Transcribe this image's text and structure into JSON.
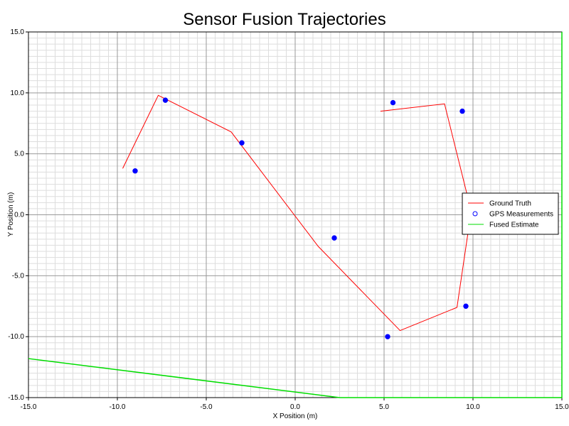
{
  "chart_data": {
    "type": "line",
    "title": "Sensor Fusion Trajectories",
    "xlabel": "X Position (m)",
    "ylabel": "Y Position (m)",
    "xlim": [
      -15,
      15
    ],
    "ylim": [
      -15,
      15
    ],
    "x_ticks": [
      "-15.0",
      "-10.0",
      "-5.0",
      "0.0",
      "5.0",
      "10.0",
      "15.0"
    ],
    "y_ticks": [
      "15.0",
      "10.0",
      "5.0",
      "0.0",
      "-5.0",
      "-10.0",
      "-15.0"
    ],
    "x_tick_values": [
      -15,
      -10,
      -5,
      0,
      5,
      10,
      15
    ],
    "y_tick_values": [
      15,
      10,
      5,
      0,
      -5,
      -10,
      -15
    ],
    "grid": true,
    "legend_position": "right",
    "series": [
      {
        "name": "Ground Truth",
        "type": "line",
        "color": "#ff0000",
        "points": [
          [
            -9.7,
            3.8
          ],
          [
            -7.7,
            9.8
          ],
          [
            -3.6,
            6.8
          ],
          [
            1.3,
            -2.6
          ],
          [
            5.9,
            -9.5
          ],
          [
            9.1,
            -7.6
          ],
          [
            9.9,
            0.3
          ],
          [
            8.4,
            9.1
          ],
          [
            4.8,
            8.5
          ]
        ]
      },
      {
        "name": "GPS Measurements",
        "type": "scatter",
        "color": "#0000ff",
        "points": [
          [
            -9.0,
            3.6
          ],
          [
            -7.3,
            9.4
          ],
          [
            -3.0,
            5.9
          ],
          [
            2.2,
            -1.9
          ],
          [
            5.2,
            -10.0
          ],
          [
            5.5,
            9.2
          ],
          [
            9.4,
            8.5
          ],
          [
            9.6,
            -7.5
          ],
          [
            10.1,
            0.6
          ]
        ]
      },
      {
        "name": "Fused Estimate",
        "type": "line",
        "color": "#00dd00",
        "points": [
          [
            -15.0,
            -11.8
          ],
          [
            2.5,
            -15.0
          ],
          [
            15.0,
            -15.0
          ],
          [
            15.0,
            15.0
          ]
        ]
      }
    ]
  }
}
